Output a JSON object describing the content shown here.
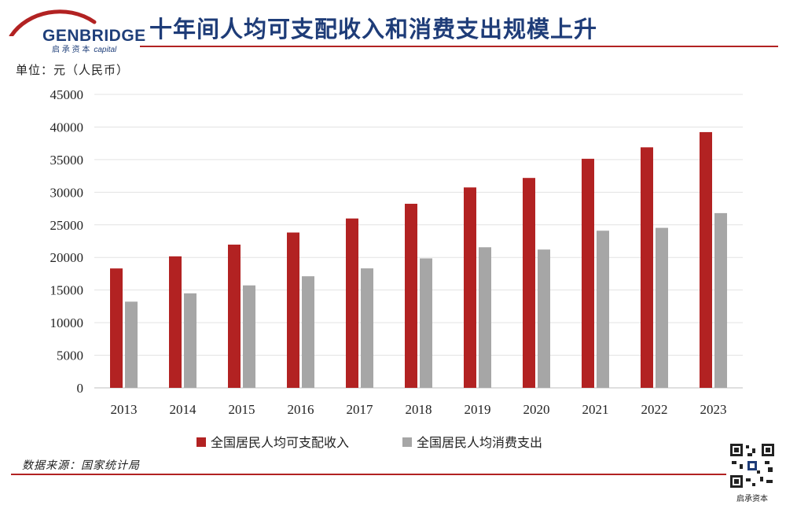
{
  "header": {
    "logo": {
      "name": "GENBRIDGE",
      "sub_cn": "启 承 资 本",
      "sub_en": "capital"
    },
    "title": "十年间人均可支配收入和消费支出规模上升"
  },
  "unit_label": "单位：元（人民币）",
  "source": "数据来源：国家统计局",
  "qr_label": "启承资本",
  "colors": {
    "income": "#b22222",
    "consumption": "#a6a6a6",
    "rule": "#b22222",
    "title": "#1e3c78"
  },
  "chart_data": {
    "type": "bar",
    "categories": [
      "2013",
      "2014",
      "2015",
      "2016",
      "2017",
      "2018",
      "2019",
      "2020",
      "2021",
      "2022",
      "2023"
    ],
    "series": [
      {
        "name": "全国居民人均可支配收入",
        "values": [
          18311,
          20167,
          21966,
          23821,
          25974,
          28228,
          30733,
          32189,
          35128,
          36883,
          39218
        ]
      },
      {
        "name": "全国居民人均消费支出",
        "values": [
          13220,
          14491,
          15712,
          17111,
          18322,
          19853,
          21559,
          21210,
          24100,
          24538,
          26796
        ]
      }
    ],
    "ylim": [
      0,
      45000
    ],
    "yticks": [
      0,
      5000,
      10000,
      15000,
      20000,
      25000,
      30000,
      35000,
      40000,
      45000
    ],
    "grid": true,
    "legend": "bottom"
  }
}
